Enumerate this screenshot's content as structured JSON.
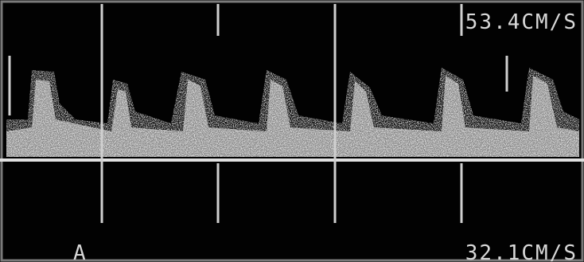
{
  "scale_top": "53.4CM/S",
  "channel": "A",
  "scale_bottom": "32.1CM/S"
}
